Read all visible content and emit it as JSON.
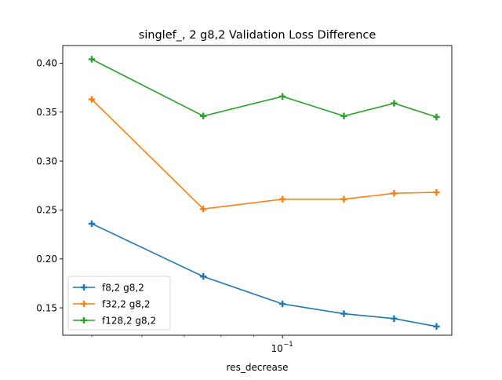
{
  "chart_data": {
    "type": "line",
    "title": "singlef_, 2 g8,2 Validation Loss Difference",
    "xlabel": "res_decrease",
    "ylabel": "",
    "x_scale": "log",
    "x": [
      0.05,
      0.075,
      0.1,
      0.125,
      0.15,
      0.175
    ],
    "xlim": [
      0.045,
      0.185
    ],
    "ylim": [
      0.122,
      0.418
    ],
    "x_major_ticks": [
      {
        "value": 0.1,
        "label": "10",
        "exponent": "−1"
      }
    ],
    "y_ticks": [
      0.15,
      0.2,
      0.25,
      0.3,
      0.35,
      0.4
    ],
    "y_tick_labels": [
      "0.15",
      "0.20",
      "0.25",
      "0.30",
      "0.35",
      "0.40"
    ],
    "grid": false,
    "legend_position": "lower-left",
    "series": [
      {
        "name": "f8,2 g8,2",
        "color": "#1f77b4",
        "values": [
          0.236,
          0.182,
          0.154,
          0.144,
          0.139,
          0.131
        ]
      },
      {
        "name": "f32,2 g8,2",
        "color": "#ff7f0e",
        "values": [
          0.363,
          0.251,
          0.261,
          0.261,
          0.267,
          0.268
        ]
      },
      {
        "name": "f128,2 g8,2",
        "color": "#2ca02c",
        "values": [
          0.404,
          0.346,
          0.366,
          0.346,
          0.359,
          0.345
        ]
      }
    ]
  }
}
